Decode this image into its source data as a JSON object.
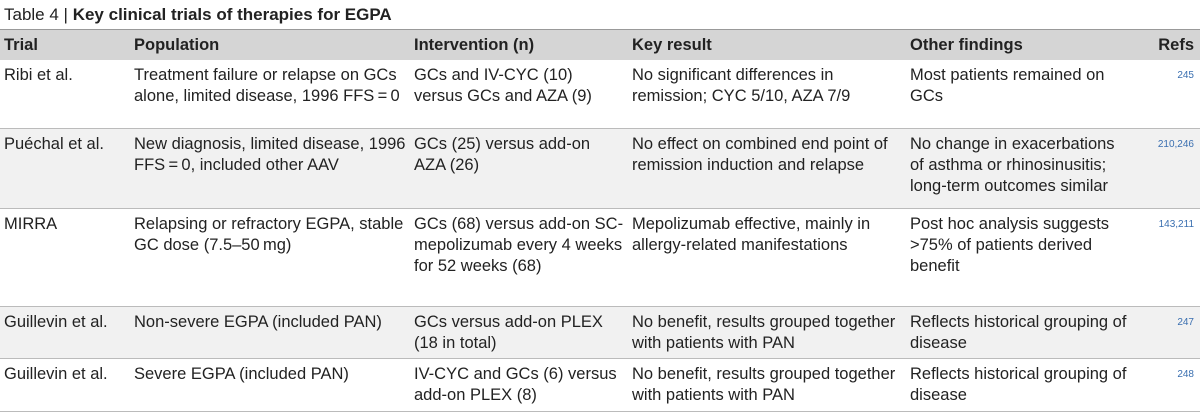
{
  "table_label": "Table 4 |",
  "title": "Key clinical trials of therapies for EGPA",
  "table": {
    "header": [
      "Trial",
      "Population",
      "Intervention (n)",
      "Key result",
      "Other findings",
      "Refs"
    ],
    "rows": [
      [
        "Ribi et al.",
        "Treatment failure or relapse on GCs alone, limited disease, 1996 FFS = 0",
        "GCs and IV-CYC (10) versus GCs and AZA (9)",
        "No significant differences in remission; CYC 5/10, AZA 7/9",
        "Most patients remained on GCs",
        "245"
      ],
      [
        "Puéchal et al.",
        "New diagnosis, limited disease, 1996 FFS = 0, included other AAV",
        "GCs (25) versus add-on AZA (26)",
        "No effect on combined end point of remission induction and relapse",
        "No change in exacerbations of asthma or rhinosinusitis; long-term outcomes similar",
        "210,246"
      ],
      [
        "MIRRA",
        "Relapsing or refractory EGPA, stable GC dose (7.5–50 mg)",
        "GCs (68) versus add-on SC-mepolizumab every 4 weeks for 52 weeks (68)",
        "Mepolizumab effective, mainly in allergy-related manifestations",
        "Post hoc analysis suggests >75% of patients derived benefit",
        "143,211"
      ],
      [
        "Guillevin et al.",
        "Non-severe EGPA (included PAN)",
        "GCs versus add-on PLEX (18 in total)",
        "No benefit, results grouped together with patients with PAN",
        "Reflects historical grouping of disease",
        "247"
      ],
      [
        "Guillevin et al.",
        "Severe EGPA (included PAN)",
        "IV-CYC and GCs (6) versus add-on PLEX (8)",
        "No benefit, results grouped together with patients with PAN",
        "Reflects historical grouping of disease",
        "248"
      ]
    ]
  }
}
